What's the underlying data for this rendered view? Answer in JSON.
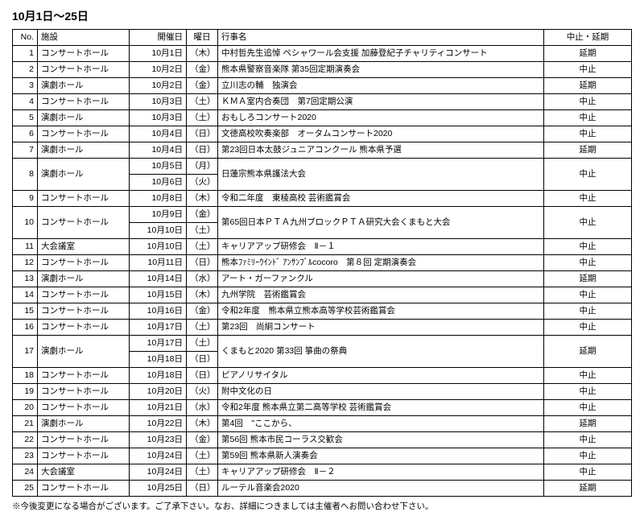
{
  "title": "10月1日～25日",
  "headers": {
    "no": "No.",
    "facility": "施設",
    "date": "開催日",
    "day": "曜日",
    "event": "行事名",
    "status": "中止・延期"
  },
  "footnote": "※今後変更になる場合がございます。ご了承下さい。なお、詳細につきましては主催者へお問い合わせ下さい。",
  "rows": [
    {
      "no": "1",
      "facility": "コンサートホール",
      "dates": [
        {
          "date": "10月1日",
          "day": "（木）"
        }
      ],
      "event": "中村哲先生追悼 ペシャワール会支援 加藤登紀子チャリティコンサート",
      "status": "延期"
    },
    {
      "no": "2",
      "facility": "コンサートホール",
      "dates": [
        {
          "date": "10月2日",
          "day": "（金）"
        }
      ],
      "event": "熊本県警察音楽隊 第35回定期演奏会",
      "status": "中止"
    },
    {
      "no": "3",
      "facility": "演劇ホール",
      "dates": [
        {
          "date": "10月2日",
          "day": "（金）"
        }
      ],
      "event": "立川志の輔　独演会",
      "status": "延期"
    },
    {
      "no": "4",
      "facility": "コンサートホール",
      "dates": [
        {
          "date": "10月3日",
          "day": "（土）"
        }
      ],
      "event": "ＫＭＡ室内合奏団　第7回定期公演",
      "status": "中止"
    },
    {
      "no": "5",
      "facility": "演劇ホール",
      "dates": [
        {
          "date": "10月3日",
          "day": "（土）"
        }
      ],
      "event": "おもしろコンサート2020",
      "status": "中止"
    },
    {
      "no": "6",
      "facility": "コンサートホール",
      "dates": [
        {
          "date": "10月4日",
          "day": "（日）"
        }
      ],
      "event": "文徳高校吹奏楽部　オータムコンサート2020",
      "status": "中止"
    },
    {
      "no": "7",
      "facility": "演劇ホール",
      "dates": [
        {
          "date": "10月4日",
          "day": "（日）"
        }
      ],
      "event": "第23回日本太鼓ジュニアコンクール 熊本県予選",
      "status": "延期"
    },
    {
      "no": "8",
      "facility": "演劇ホール",
      "dates": [
        {
          "date": "10月5日",
          "day": "（月）"
        },
        {
          "date": "10月6日",
          "day": "（火）"
        }
      ],
      "event": "日蓮宗熊本県護法大会",
      "status": "中止"
    },
    {
      "no": "9",
      "facility": "コンサートホール",
      "dates": [
        {
          "date": "10月8日",
          "day": "（木）"
        }
      ],
      "event": "令和二年度　東稜高校 芸術鑑賞会",
      "status": "中止"
    },
    {
      "no": "10",
      "facility": "コンサートホール",
      "dates": [
        {
          "date": "10月9日",
          "day": "（金）"
        },
        {
          "date": "10月10日",
          "day": "（土）"
        }
      ],
      "event": "第65回日本ＰＴＡ九州ブロックＰＴＡ研究大会くまもと大会",
      "status": "中止"
    },
    {
      "no": "11",
      "facility": "大会議室",
      "dates": [
        {
          "date": "10月10日",
          "day": "（土）"
        }
      ],
      "event": "キャリアアップ研修会　Ⅱ－１",
      "status": "中止"
    },
    {
      "no": "12",
      "facility": "コンサートホール",
      "dates": [
        {
          "date": "10月11日",
          "day": "（日）"
        }
      ],
      "event": "熊本ﾌｧﾐﾘｰｳｲﾝﾄﾞ ｱﾝｻﾝﾌﾞﾙcocoro　第８回 定期演奏会",
      "status": "中止"
    },
    {
      "no": "13",
      "facility": "演劇ホール",
      "dates": [
        {
          "date": "10月14日",
          "day": "（水）"
        }
      ],
      "event": "アート・ガーファンクル",
      "status": "延期"
    },
    {
      "no": "14",
      "facility": "コンサートホール",
      "dates": [
        {
          "date": "10月15日",
          "day": "（木）"
        }
      ],
      "event": "九州学院　芸術鑑賞会",
      "status": "中止"
    },
    {
      "no": "15",
      "facility": "コンサートホール",
      "dates": [
        {
          "date": "10月16日",
          "day": "（金）"
        }
      ],
      "event": "令和2年度　熊本県立熊本高等学校芸術鑑賞会",
      "status": "中止"
    },
    {
      "no": "16",
      "facility": "コンサートホール",
      "dates": [
        {
          "date": "10月17日",
          "day": "（土）"
        }
      ],
      "event": "第23回　尚絅コンサート",
      "status": "中止"
    },
    {
      "no": "17",
      "facility": "演劇ホール",
      "dates": [
        {
          "date": "10月17日",
          "day": "（土）"
        },
        {
          "date": "10月18日",
          "day": "（日）"
        }
      ],
      "event": "くまもと2020 第33回 箏曲の祭典",
      "status": "延期"
    },
    {
      "no": "18",
      "facility": "コンサートホール",
      "dates": [
        {
          "date": "10月18日",
          "day": "（日）"
        }
      ],
      "event": "ピアノリサイタル",
      "status": "中止"
    },
    {
      "no": "19",
      "facility": "コンサートホール",
      "dates": [
        {
          "date": "10月20日",
          "day": "（火）"
        }
      ],
      "event": "附中文化の日",
      "status": "中止"
    },
    {
      "no": "20",
      "facility": "コンサートホール",
      "dates": [
        {
          "date": "10月21日",
          "day": "（水）"
        }
      ],
      "event": "令和2年度 熊本県立第二高等学校 芸術鑑賞会",
      "status": "中止"
    },
    {
      "no": "21",
      "facility": "演劇ホール",
      "dates": [
        {
          "date": "10月22日",
          "day": "（木）"
        }
      ],
      "event": "第4回　\"ここから、",
      "status": "延期"
    },
    {
      "no": "22",
      "facility": "コンサートホール",
      "dates": [
        {
          "date": "10月23日",
          "day": "（金）"
        }
      ],
      "event": "第56回 熊本市民コーラス交歓会",
      "status": "中止"
    },
    {
      "no": "23",
      "facility": "コンサートホール",
      "dates": [
        {
          "date": "10月24日",
          "day": "（土）"
        }
      ],
      "event": "第59回 熊本県新人演奏会",
      "status": "中止"
    },
    {
      "no": "24",
      "facility": "大会議室",
      "dates": [
        {
          "date": "10月24日",
          "day": "（土）"
        }
      ],
      "event": "キャリアアップ研修会　Ⅱ－２",
      "status": "中止"
    },
    {
      "no": "25",
      "facility": "コンサートホール",
      "dates": [
        {
          "date": "10月25日",
          "day": "（日）"
        }
      ],
      "event": "ルーテル音楽会2020",
      "status": "延期"
    }
  ]
}
